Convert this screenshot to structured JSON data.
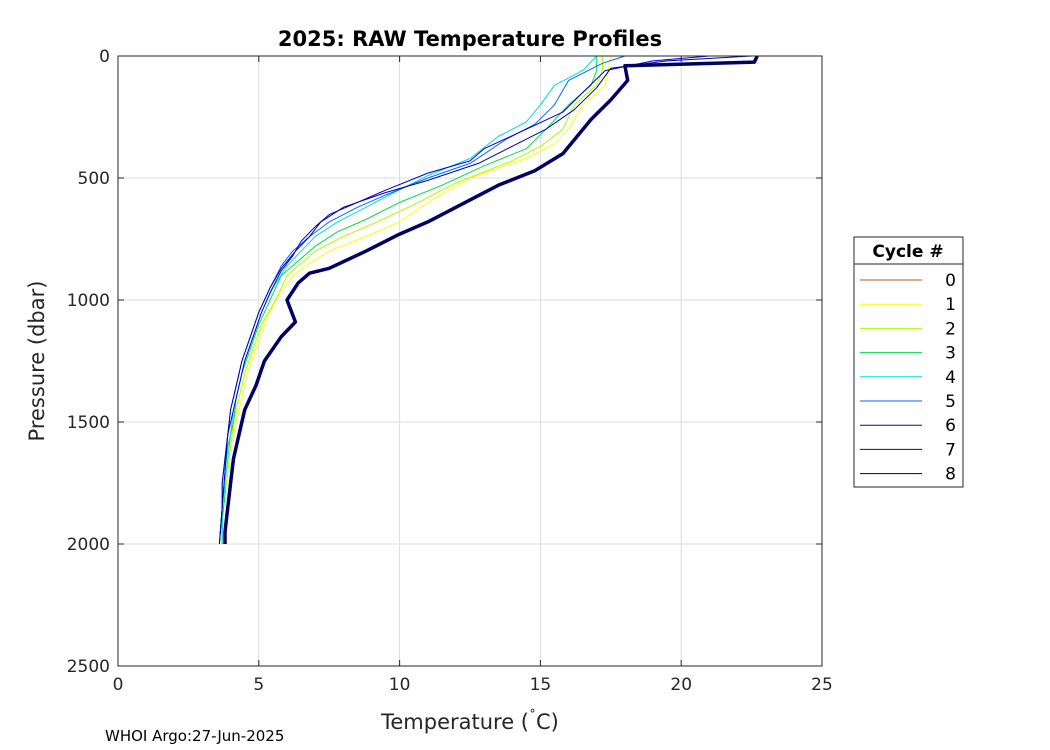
{
  "chart_data": {
    "type": "line",
    "title": "2025: RAW Temperature Profiles",
    "xlabel": "Temperature (",
    "xlabel_deg": "˚",
    "xlabel_unit": "C)",
    "ylabel": "Pressure (dbar)",
    "xlim": [
      0,
      25
    ],
    "ylim": [
      0,
      2500
    ],
    "y_reversed": true,
    "grid": true,
    "x_ticks": [
      "0",
      "5",
      "10",
      "15",
      "20",
      "25"
    ],
    "y_ticks": [
      "0",
      "500",
      "1000",
      "1500",
      "2000",
      "2500"
    ],
    "legend": {
      "title": "Cycle #",
      "placement": "outside-right"
    },
    "series": [
      {
        "name": "0",
        "color": "#b35a1f",
        "points": []
      },
      {
        "name": "1",
        "color": "#ffff00",
        "points": [
          [
            17.5,
            0
          ],
          [
            17.4,
            60
          ],
          [
            17.3,
            120
          ],
          [
            16.5,
            200
          ],
          [
            16.0,
            300
          ],
          [
            15.5,
            360
          ],
          [
            14.5,
            420
          ],
          [
            12.5,
            500
          ],
          [
            11.0,
            600
          ],
          [
            10.0,
            680
          ],
          [
            9.0,
            730
          ],
          [
            7.5,
            800
          ],
          [
            6.8,
            850
          ],
          [
            6.2,
            900
          ],
          [
            5.6,
            1000
          ],
          [
            5.2,
            1100
          ],
          [
            4.9,
            1200
          ],
          [
            4.6,
            1300
          ],
          [
            4.4,
            1400
          ],
          [
            4.2,
            1500
          ],
          [
            4.0,
            1600
          ],
          [
            3.9,
            1700
          ],
          [
            3.8,
            1800
          ],
          [
            3.7,
            1900
          ],
          [
            3.7,
            2000
          ]
        ]
      },
      {
        "name": "2",
        "color": "#aaff00",
        "points": [
          [
            17.2,
            0
          ],
          [
            17.2,
            60
          ],
          [
            17.0,
            120
          ],
          [
            16.2,
            200
          ],
          [
            15.8,
            300
          ],
          [
            15.0,
            370
          ],
          [
            14.0,
            430
          ],
          [
            12.0,
            520
          ],
          [
            10.5,
            610
          ],
          [
            9.2,
            680
          ],
          [
            8.0,
            740
          ],
          [
            7.0,
            800
          ],
          [
            6.5,
            850
          ],
          [
            6.0,
            900
          ],
          [
            5.6,
            1000
          ],
          [
            5.1,
            1100
          ],
          [
            4.8,
            1200
          ],
          [
            4.5,
            1300
          ],
          [
            4.3,
            1400
          ],
          [
            4.1,
            1500
          ],
          [
            4.0,
            1600
          ],
          [
            3.9,
            1700
          ],
          [
            3.8,
            1800
          ],
          [
            3.7,
            1900
          ],
          [
            3.7,
            2000
          ]
        ]
      },
      {
        "name": "3",
        "color": "#00dd44",
        "points": [
          [
            17.0,
            0
          ],
          [
            17.0,
            60
          ],
          [
            16.8,
            120
          ],
          [
            16.0,
            200
          ],
          [
            15.2,
            300
          ],
          [
            14.5,
            380
          ],
          [
            13.0,
            450
          ],
          [
            11.5,
            530
          ],
          [
            10.0,
            600
          ],
          [
            8.8,
            670
          ],
          [
            7.8,
            720
          ],
          [
            7.0,
            780
          ],
          [
            6.3,
            850
          ],
          [
            5.8,
            900
          ],
          [
            5.4,
            1000
          ],
          [
            5.0,
            1100
          ],
          [
            4.7,
            1200
          ],
          [
            4.4,
            1300
          ],
          [
            4.2,
            1400
          ],
          [
            4.1,
            1500
          ],
          [
            3.9,
            1600
          ],
          [
            3.8,
            1700
          ],
          [
            3.8,
            1800
          ],
          [
            3.7,
            1900
          ],
          [
            3.7,
            2000
          ]
        ]
      },
      {
        "name": "4",
        "color": "#00dddd",
        "points": [
          [
            17.0,
            0
          ],
          [
            16.5,
            60
          ],
          [
            15.5,
            120
          ],
          [
            15.0,
            200
          ],
          [
            14.5,
            270
          ],
          [
            13.5,
            330
          ],
          [
            12.5,
            420
          ],
          [
            11.0,
            490
          ],
          [
            9.8,
            560
          ],
          [
            8.8,
            620
          ],
          [
            7.8,
            680
          ],
          [
            7.0,
            740
          ],
          [
            6.5,
            800
          ],
          [
            6.0,
            860
          ],
          [
            5.5,
            950
          ],
          [
            5.1,
            1050
          ],
          [
            4.8,
            1150
          ],
          [
            4.5,
            1250
          ],
          [
            4.3,
            1350
          ],
          [
            4.1,
            1450
          ],
          [
            4.0,
            1550
          ],
          [
            3.9,
            1650
          ],
          [
            3.8,
            1750
          ],
          [
            3.7,
            1850
          ],
          [
            3.7,
            2000
          ]
        ]
      },
      {
        "name": "5",
        "color": "#0066ff",
        "points": [
          [
            18.0,
            0
          ],
          [
            17.2,
            30
          ],
          [
            16.0,
            100
          ],
          [
            15.5,
            200
          ],
          [
            14.8,
            280
          ],
          [
            13.8,
            340
          ],
          [
            12.5,
            440
          ],
          [
            11.0,
            500
          ],
          [
            9.5,
            570
          ],
          [
            8.5,
            620
          ],
          [
            7.5,
            680
          ],
          [
            6.8,
            740
          ],
          [
            6.2,
            800
          ],
          [
            5.8,
            860
          ],
          [
            5.4,
            950
          ],
          [
            5.0,
            1050
          ],
          [
            4.7,
            1150
          ],
          [
            4.4,
            1250
          ],
          [
            4.2,
            1350
          ],
          [
            4.0,
            1450
          ],
          [
            3.9,
            1550
          ],
          [
            3.8,
            1650
          ],
          [
            3.7,
            1750
          ],
          [
            3.7,
            1850
          ],
          [
            3.6,
            2000
          ]
        ]
      },
      {
        "name": "6",
        "color": "#0000cc",
        "points": [
          [
            21.0,
            0
          ],
          [
            19.0,
            20
          ],
          [
            17.3,
            60
          ],
          [
            16.5,
            150
          ],
          [
            15.8,
            230
          ],
          [
            14.5,
            300
          ],
          [
            13.0,
            380
          ],
          [
            12.5,
            430
          ],
          [
            11.0,
            480
          ],
          [
            9.5,
            550
          ],
          [
            8.5,
            600
          ],
          [
            7.5,
            650
          ],
          [
            7.0,
            700
          ],
          [
            6.5,
            760
          ],
          [
            6.2,
            820
          ],
          [
            5.8,
            880
          ],
          [
            5.4,
            970
          ],
          [
            5.1,
            1050
          ],
          [
            4.8,
            1150
          ],
          [
            4.5,
            1250
          ],
          [
            4.3,
            1350
          ],
          [
            4.1,
            1450
          ],
          [
            3.9,
            1550
          ],
          [
            3.8,
            1700
          ],
          [
            3.7,
            1850
          ],
          [
            3.6,
            2000
          ]
        ]
      },
      {
        "name": "7",
        "color": "#0000aa",
        "points": [
          [
            22.5,
            0
          ],
          [
            19.5,
            20
          ],
          [
            17.5,
            50
          ],
          [
            17.0,
            130
          ],
          [
            16.2,
            220
          ],
          [
            15.2,
            300
          ],
          [
            14.0,
            370
          ],
          [
            12.8,
            440
          ],
          [
            11.0,
            510
          ],
          [
            9.5,
            560
          ],
          [
            8.0,
            620
          ],
          [
            7.2,
            680
          ],
          [
            6.8,
            740
          ],
          [
            6.3,
            800
          ],
          [
            5.8,
            870
          ],
          [
            5.4,
            950
          ],
          [
            5.0,
            1050
          ],
          [
            4.7,
            1150
          ],
          [
            4.4,
            1250
          ],
          [
            4.2,
            1350
          ],
          [
            4.0,
            1450
          ],
          [
            3.9,
            1550
          ],
          [
            3.8,
            1650
          ],
          [
            3.7,
            1750
          ],
          [
            3.7,
            1850
          ],
          [
            3.6,
            2000
          ]
        ]
      },
      {
        "name": "8",
        "color": "#000066",
        "points": [
          [
            22.7,
            0
          ],
          [
            22.6,
            25
          ],
          [
            18.0,
            40
          ],
          [
            18.1,
            100
          ],
          [
            17.5,
            180
          ],
          [
            16.8,
            260
          ],
          [
            16.3,
            330
          ],
          [
            15.8,
            400
          ],
          [
            14.8,
            470
          ],
          [
            13.5,
            530
          ],
          [
            12.0,
            620
          ],
          [
            11.0,
            680
          ],
          [
            10.0,
            730
          ],
          [
            8.8,
            800
          ],
          [
            7.5,
            870
          ],
          [
            6.8,
            890
          ],
          [
            6.4,
            930
          ],
          [
            6.0,
            1000
          ],
          [
            6.3,
            1090
          ],
          [
            5.8,
            1150
          ],
          [
            5.2,
            1250
          ],
          [
            4.9,
            1350
          ],
          [
            4.5,
            1450
          ],
          [
            4.3,
            1550
          ],
          [
            4.1,
            1650
          ],
          [
            4.0,
            1750
          ],
          [
            3.9,
            1850
          ],
          [
            3.8,
            1950
          ],
          [
            3.8,
            2000
          ]
        ]
      }
    ]
  },
  "footer": "WHOI Argo:27-Jun-2025"
}
